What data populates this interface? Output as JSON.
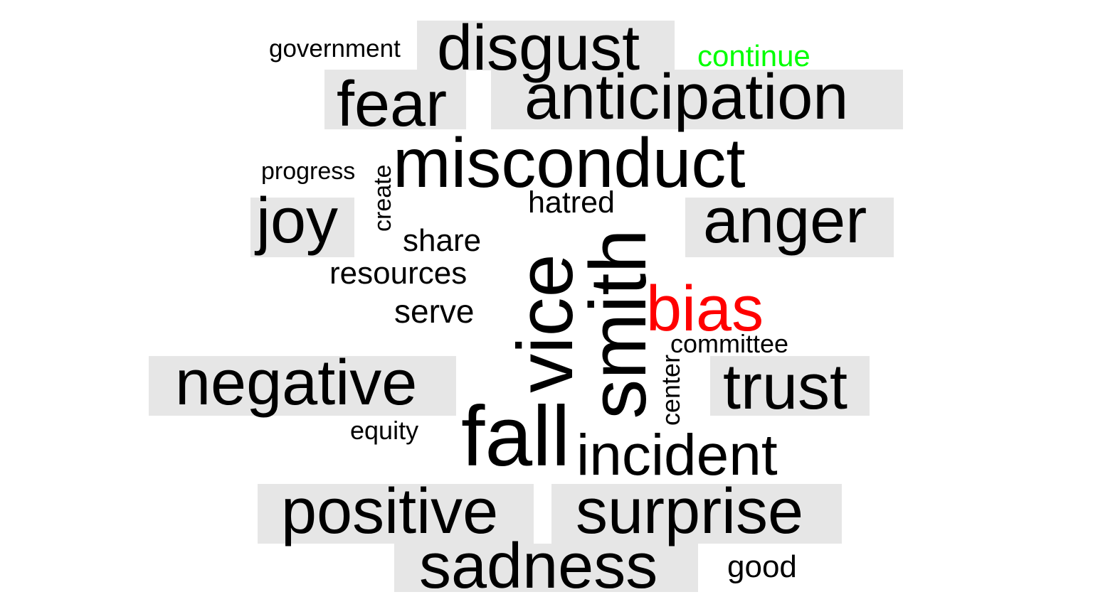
{
  "colors": {
    "text": "#000000",
    "box_background": "#e6e6e6",
    "highlight_green": "#00ff00",
    "highlight_red": "#ff0000"
  },
  "words": {
    "government": "government",
    "disgust": "disgust",
    "continue": "continue",
    "fear": "fear",
    "anticipation": "anticipation",
    "progress": "progress",
    "create": "create",
    "misconduct": "misconduct",
    "hatred": "hatred",
    "joy": "joy",
    "anger": "anger",
    "share": "share",
    "resources": "resources",
    "vice": "vice",
    "smith": "smith",
    "bias": "bias",
    "serve": "serve",
    "committee": "committee",
    "negative": "negative",
    "center": "center",
    "trust": "trust",
    "equity": "equity",
    "fall": "fall",
    "incident": "incident",
    "positive": "positive",
    "surprise": "surprise",
    "sadness": "sadness",
    "good": "good"
  }
}
